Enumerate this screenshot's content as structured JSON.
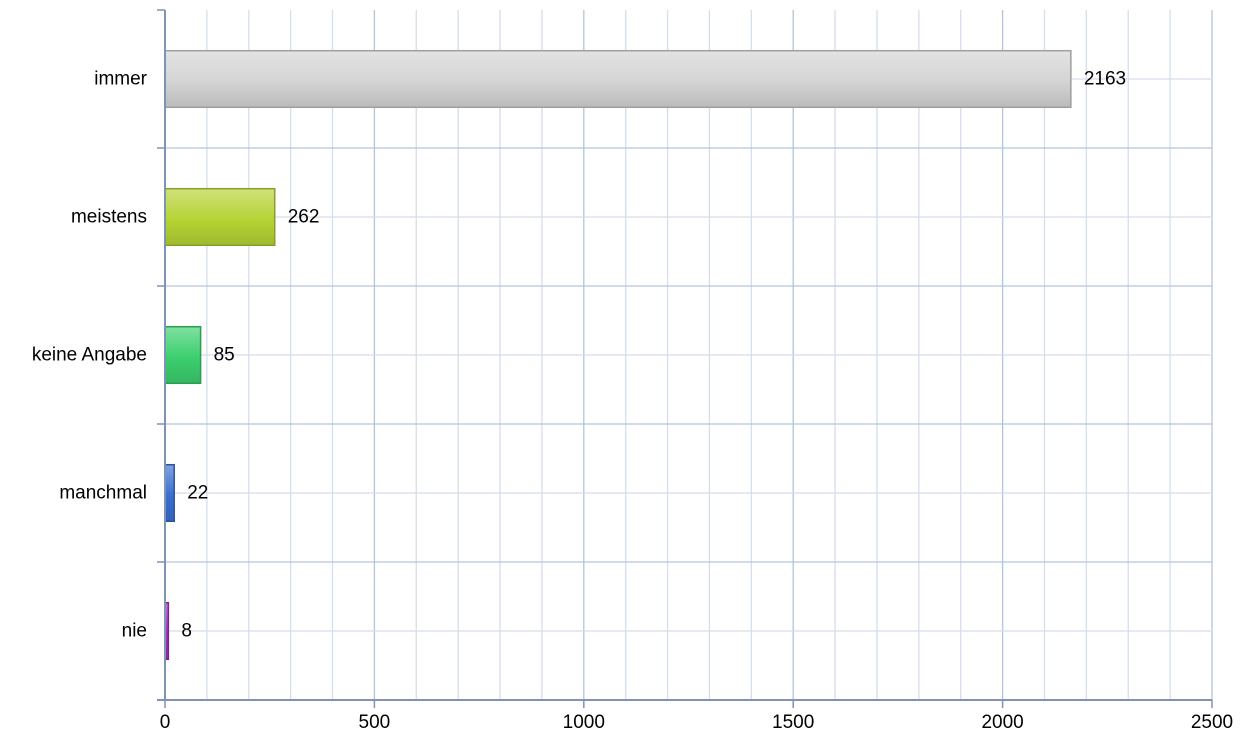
{
  "chart_data": {
    "type": "bar",
    "orientation": "horizontal",
    "title": "",
    "xlabel": "",
    "ylabel": "",
    "categories": [
      "immer",
      "meistens",
      "keine Angabe",
      "manchmal",
      "nie"
    ],
    "values": [
      2163,
      262,
      85,
      22,
      8
    ],
    "data_labels": [
      "2163",
      "262",
      "85",
      "22",
      "8"
    ],
    "colors": [
      "#d4d4d4",
      "#b5d334",
      "#3ccf6e",
      "#3a6fd0",
      "#a52dc0"
    ],
    "xlim": [
      0,
      2500
    ],
    "x_ticks": [
      0,
      500,
      1000,
      1500,
      2000,
      2500
    ],
    "x_tick_labels": [
      "0",
      "500",
      "1000",
      "1500",
      "2000",
      "2500"
    ],
    "minor_step": 100,
    "grid": true,
    "legend": "none"
  }
}
